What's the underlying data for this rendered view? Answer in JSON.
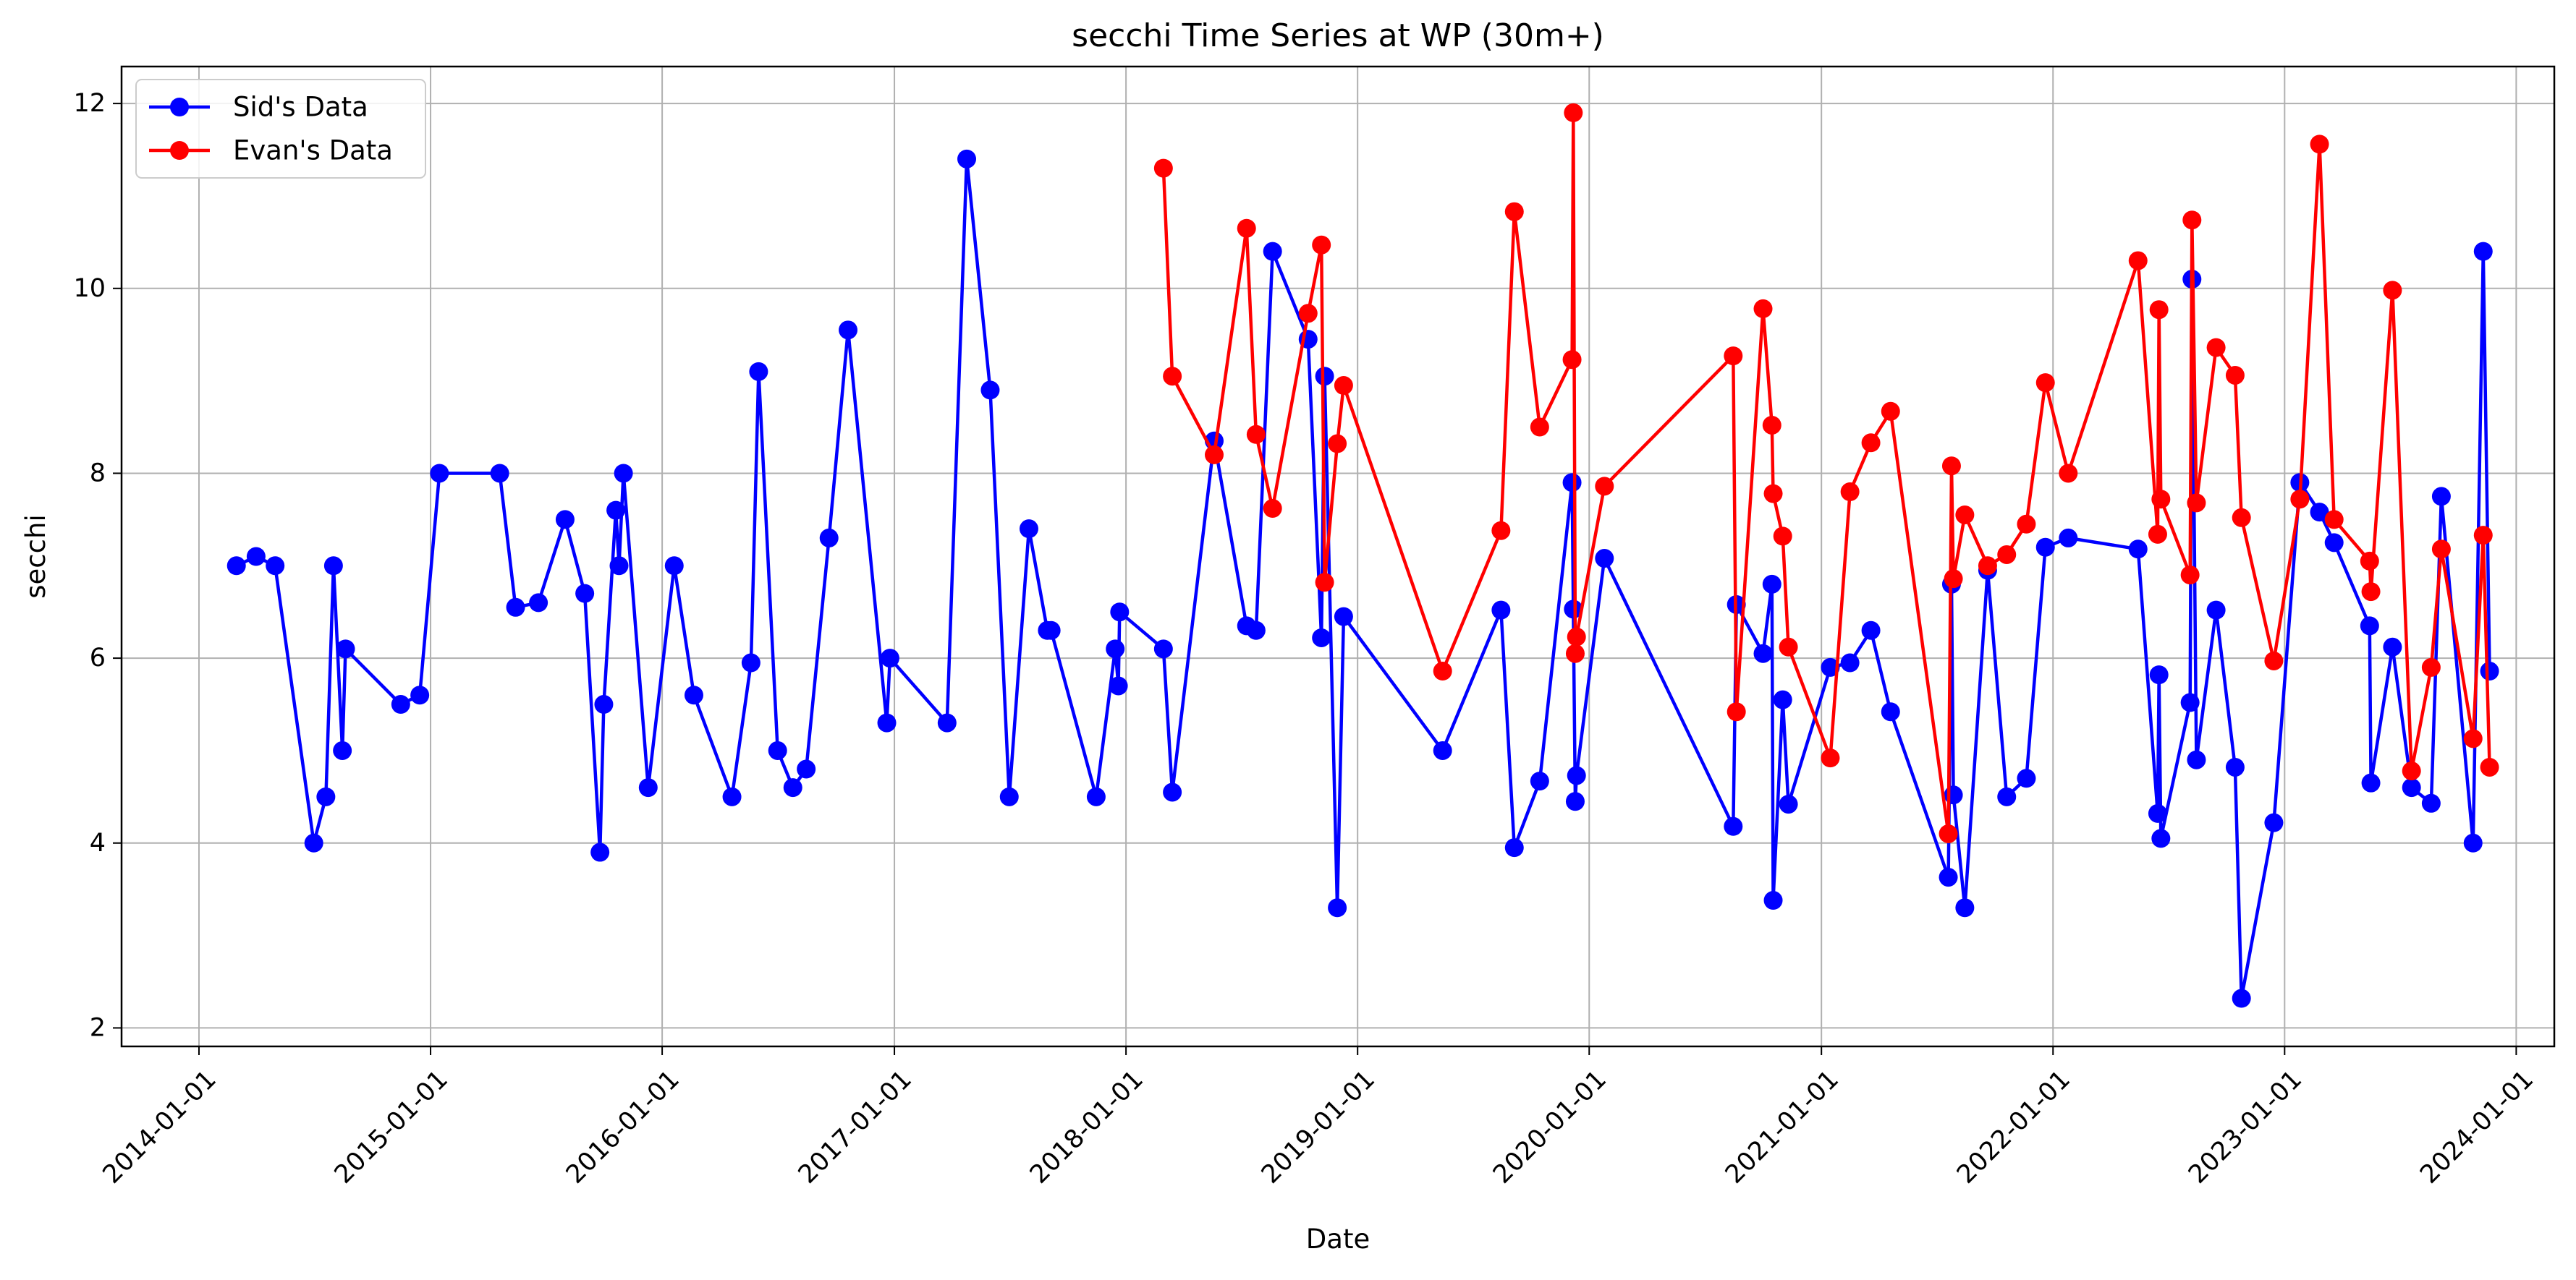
{
  "chart_data": {
    "type": "line",
    "title": "secchi Time Series at WP (30m+)",
    "xlabel": "Date",
    "ylabel": "secchi",
    "x_axis_type": "date",
    "xlim": [
      "2013-09-01",
      "2024-03-01"
    ],
    "ylim": [
      1.8,
      12.4
    ],
    "x_ticks": [
      "2014-01-01",
      "2015-01-01",
      "2016-01-01",
      "2017-01-01",
      "2018-01-01",
      "2019-01-01",
      "2020-01-01",
      "2021-01-01",
      "2022-01-01",
      "2023-01-01",
      "2024-01-01"
    ],
    "y_ticks": [
      2,
      4,
      6,
      8,
      10,
      12
    ],
    "grid": true,
    "legend": {
      "position": "top-left",
      "entries": [
        "Sid's Data",
        "Evan's Data"
      ]
    },
    "marker": "circle",
    "series": [
      {
        "name": "Sid's Data",
        "color": "#0000ff",
        "points": [
          [
            "2014-03-01",
            7.0
          ],
          [
            "2014-04-01",
            7.1
          ],
          [
            "2014-05-01",
            7.0
          ],
          [
            "2014-07-01",
            4.0
          ],
          [
            "2014-07-20",
            4.5
          ],
          [
            "2014-08-01",
            7.0
          ],
          [
            "2014-08-15",
            5.0
          ],
          [
            "2014-08-20",
            6.1
          ],
          [
            "2014-11-15",
            5.5
          ],
          [
            "2014-12-15",
            5.6
          ],
          [
            "2015-01-15",
            8.0
          ],
          [
            "2015-04-20",
            8.0
          ],
          [
            "2015-05-15",
            6.55
          ],
          [
            "2015-06-20",
            6.6
          ],
          [
            "2015-08-01",
            7.5
          ],
          [
            "2015-09-01",
            6.7
          ],
          [
            "2015-09-25",
            3.9
          ],
          [
            "2015-10-01",
            5.5
          ],
          [
            "2015-10-20",
            7.6
          ],
          [
            "2015-10-25",
            7.0
          ],
          [
            "2015-11-01",
            8.0
          ],
          [
            "2015-12-10",
            4.6
          ],
          [
            "2016-01-20",
            7.0
          ],
          [
            "2016-02-20",
            5.6
          ],
          [
            "2016-04-20",
            4.5
          ],
          [
            "2016-05-20",
            5.95
          ],
          [
            "2016-06-01",
            9.1
          ],
          [
            "2016-07-01",
            5.0
          ],
          [
            "2016-07-25",
            4.6
          ],
          [
            "2016-08-15",
            4.8
          ],
          [
            "2016-09-20",
            7.3
          ],
          [
            "2016-10-20",
            9.55
          ],
          [
            "2016-12-20",
            5.3
          ],
          [
            "2016-12-25",
            6.0
          ],
          [
            "2017-03-25",
            5.3
          ],
          [
            "2017-04-25",
            11.4
          ],
          [
            "2017-06-01",
            8.9
          ],
          [
            "2017-07-01",
            4.5
          ],
          [
            "2017-08-01",
            7.4
          ],
          [
            "2017-08-30",
            6.3
          ],
          [
            "2017-09-05",
            6.3
          ],
          [
            "2017-11-15",
            4.5
          ],
          [
            "2017-12-15",
            6.1
          ],
          [
            "2017-12-20",
            5.7
          ],
          [
            "2017-12-22",
            6.5
          ],
          [
            "2018-03-01",
            6.1
          ],
          [
            "2018-03-15",
            4.55
          ],
          [
            "2018-05-20",
            8.35
          ],
          [
            "2018-07-10",
            6.35
          ],
          [
            "2018-07-25",
            6.3
          ],
          [
            "2018-08-20",
            10.4
          ],
          [
            "2018-10-15",
            9.45
          ],
          [
            "2018-11-05",
            6.22
          ],
          [
            "2018-11-10",
            9.05
          ],
          [
            "2018-11-30",
            3.3
          ],
          [
            "2018-12-10",
            6.45
          ],
          [
            "2019-05-15",
            5.0
          ],
          [
            "2019-08-15",
            6.52
          ],
          [
            "2019-09-05",
            3.95
          ],
          [
            "2019-10-15",
            4.67
          ],
          [
            "2019-12-05",
            7.9
          ],
          [
            "2019-12-07",
            6.53
          ],
          [
            "2019-12-10",
            4.45
          ],
          [
            "2019-12-12",
            4.73
          ],
          [
            "2020-01-25",
            7.08
          ],
          [
            "2020-08-15",
            4.18
          ],
          [
            "2020-08-20",
            6.58
          ],
          [
            "2020-10-01",
            6.05
          ],
          [
            "2020-10-15",
            6.8
          ],
          [
            "2020-10-17",
            3.38
          ],
          [
            "2020-11-01",
            5.55
          ],
          [
            "2020-11-10",
            4.42
          ],
          [
            "2021-01-15",
            5.9
          ],
          [
            "2021-02-15",
            5.95
          ],
          [
            "2021-03-20",
            6.3
          ],
          [
            "2021-04-20",
            5.42
          ],
          [
            "2021-07-20",
            3.63
          ],
          [
            "2021-07-25",
            6.8
          ],
          [
            "2021-07-28",
            4.52
          ],
          [
            "2021-08-15",
            3.3
          ],
          [
            "2021-09-20",
            6.95
          ],
          [
            "2021-10-20",
            4.5
          ],
          [
            "2021-11-20",
            4.7
          ],
          [
            "2021-12-20",
            7.2
          ],
          [
            "2022-01-25",
            7.3
          ],
          [
            "2022-05-15",
            7.18
          ],
          [
            "2022-06-15",
            4.32
          ],
          [
            "2022-06-17",
            5.82
          ],
          [
            "2022-06-20",
            4.05
          ],
          [
            "2022-08-05",
            5.52
          ],
          [
            "2022-08-08",
            10.1
          ],
          [
            "2022-08-15",
            4.9
          ],
          [
            "2022-09-15",
            6.52
          ],
          [
            "2022-10-15",
            4.82
          ],
          [
            "2022-10-25",
            2.32
          ],
          [
            "2022-12-15",
            4.22
          ],
          [
            "2023-01-25",
            7.9
          ],
          [
            "2023-02-25",
            7.58
          ],
          [
            "2023-03-20",
            7.25
          ],
          [
            "2023-05-15",
            6.35
          ],
          [
            "2023-05-17",
            4.65
          ],
          [
            "2023-06-20",
            6.12
          ],
          [
            "2023-07-20",
            4.6
          ],
          [
            "2023-08-20",
            4.43
          ],
          [
            "2023-09-05",
            7.75
          ],
          [
            "2023-10-25",
            4.0
          ],
          [
            "2023-11-10",
            10.4
          ],
          [
            "2023-11-20",
            5.86
          ]
        ]
      },
      {
        "name": "Evan's Data",
        "color": "#ff0000",
        "points": [
          [
            "2018-03-01",
            11.3
          ],
          [
            "2018-03-15",
            9.05
          ],
          [
            "2018-05-20",
            8.2
          ],
          [
            "2018-07-10",
            10.65
          ],
          [
            "2018-07-25",
            8.42
          ],
          [
            "2018-08-20",
            7.62
          ],
          [
            "2018-10-15",
            9.73
          ],
          [
            "2018-11-05",
            10.47
          ],
          [
            "2018-11-10",
            6.82
          ],
          [
            "2018-11-30",
            8.32
          ],
          [
            "2018-12-10",
            8.95
          ],
          [
            "2019-05-15",
            5.86
          ],
          [
            "2019-08-15",
            7.38
          ],
          [
            "2019-09-05",
            10.83
          ],
          [
            "2019-10-15",
            8.5
          ],
          [
            "2019-12-05",
            9.23
          ],
          [
            "2019-12-07",
            11.9
          ],
          [
            "2019-12-10",
            6.05
          ],
          [
            "2019-12-12",
            6.23
          ],
          [
            "2020-01-25",
            7.86
          ],
          [
            "2020-08-15",
            9.27
          ],
          [
            "2020-08-20",
            5.42
          ],
          [
            "2020-10-01",
            9.78
          ],
          [
            "2020-10-15",
            8.52
          ],
          [
            "2020-10-17",
            7.78
          ],
          [
            "2020-11-01",
            7.32
          ],
          [
            "2020-11-10",
            6.12
          ],
          [
            "2021-01-15",
            4.92
          ],
          [
            "2021-02-15",
            7.8
          ],
          [
            "2021-03-20",
            8.33
          ],
          [
            "2021-04-20",
            8.67
          ],
          [
            "2021-07-20",
            4.1
          ],
          [
            "2021-07-25",
            8.08
          ],
          [
            "2021-07-28",
            6.86
          ],
          [
            "2021-08-15",
            7.55
          ],
          [
            "2021-09-20",
            7.0
          ],
          [
            "2021-10-20",
            7.12
          ],
          [
            "2021-11-20",
            7.45
          ],
          [
            "2021-12-20",
            8.98
          ],
          [
            "2022-01-25",
            8.0
          ],
          [
            "2022-05-15",
            10.3
          ],
          [
            "2022-06-15",
            7.34
          ],
          [
            "2022-06-17",
            9.77
          ],
          [
            "2022-06-20",
            7.72
          ],
          [
            "2022-08-05",
            6.9
          ],
          [
            "2022-08-08",
            10.74
          ],
          [
            "2022-08-15",
            7.68
          ],
          [
            "2022-09-15",
            9.36
          ],
          [
            "2022-10-15",
            9.06
          ],
          [
            "2022-10-25",
            7.52
          ],
          [
            "2022-12-15",
            5.97
          ],
          [
            "2023-01-25",
            7.72
          ],
          [
            "2023-02-25",
            11.56
          ],
          [
            "2023-03-20",
            7.5
          ],
          [
            "2023-05-15",
            7.05
          ],
          [
            "2023-05-17",
            6.72
          ],
          [
            "2023-06-20",
            9.98
          ],
          [
            "2023-07-20",
            4.78
          ],
          [
            "2023-08-20",
            5.9
          ],
          [
            "2023-09-05",
            7.18
          ],
          [
            "2023-10-25",
            5.13
          ],
          [
            "2023-11-10",
            7.33
          ],
          [
            "2023-11-20",
            4.82
          ]
        ]
      }
    ]
  }
}
